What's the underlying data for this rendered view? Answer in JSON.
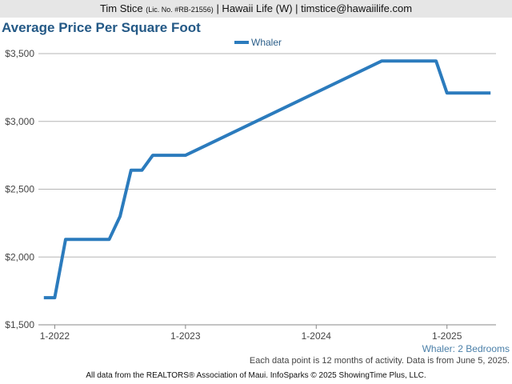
{
  "header": {
    "agent_name": "Tim Stice",
    "license": "(Lic. No. #RB-21556)",
    "rest": "| Hawaii Life (W) | timstice@hawaiilife.com"
  },
  "chart_data": {
    "type": "line",
    "title": "Average Price Per Square Foot",
    "subtitle": "Whaler: 2 Bedrooms",
    "xlabel": "",
    "ylabel": "",
    "ylim": [
      1500,
      3500
    ],
    "y_ticks": [
      1500,
      2000,
      2500,
      3000,
      3500
    ],
    "y_tick_labels": [
      "$1,500",
      "$2,000",
      "$2,500",
      "$3,000",
      "$3,500"
    ],
    "x_tick_labels": [
      "1-2022",
      "1-2023",
      "1-2024",
      "1-2025"
    ],
    "x_range": [
      "2021-12",
      "2025-05"
    ],
    "legend_position": "top-center",
    "grid": true,
    "series": [
      {
        "name": "Whaler",
        "color": "#2b7bbd",
        "points": [
          {
            "x": "2021-12",
            "y": 1700
          },
          {
            "x": "2022-01",
            "y": 1700
          },
          {
            "x": "2022-02",
            "y": 2130
          },
          {
            "x": "2022-03",
            "y": 2130
          },
          {
            "x": "2022-04",
            "y": 2130
          },
          {
            "x": "2022-05",
            "y": 2130
          },
          {
            "x": "2022-06",
            "y": 2130
          },
          {
            "x": "2022-07",
            "y": 2300
          },
          {
            "x": "2022-08",
            "y": 2640
          },
          {
            "x": "2022-09",
            "y": 2640
          },
          {
            "x": "2022-10",
            "y": 2750
          },
          {
            "x": "2022-11",
            "y": 2750
          },
          {
            "x": "2022-12",
            "y": 2750
          },
          {
            "x": "2023-01",
            "y": 2750
          },
          {
            "x": "2024-07",
            "y": 3445
          },
          {
            "x": "2024-08",
            "y": 3445
          },
          {
            "x": "2024-09",
            "y": 3445
          },
          {
            "x": "2024-10",
            "y": 3445
          },
          {
            "x": "2024-11",
            "y": 3445
          },
          {
            "x": "2024-12",
            "y": 3445
          },
          {
            "x": "2025-01",
            "y": 3210
          },
          {
            "x": "2025-05",
            "y": 3210
          }
        ]
      }
    ]
  },
  "footnote": "Each data point is 12 months of activity. Data is from June 5, 2025.",
  "credit": "All data from the REALTORS® Association of Maui. InfoSparks © 2025 ShowingTime Plus, LLC."
}
